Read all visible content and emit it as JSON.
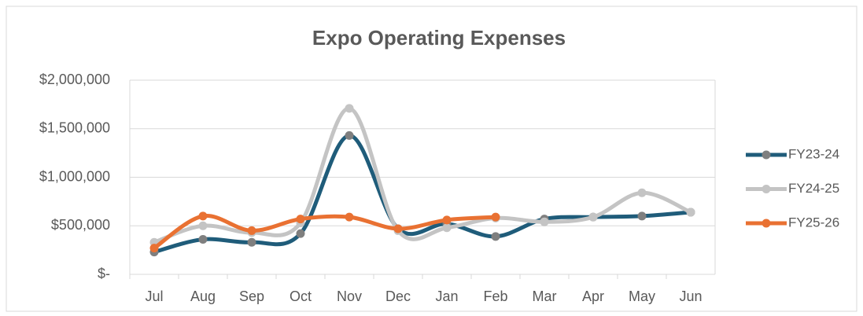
{
  "chart_data": {
    "type": "line",
    "title": "Expo Operating Expenses",
    "categories": [
      "Jul",
      "Aug",
      "Sep",
      "Oct",
      "Nov",
      "Dec",
      "Jan",
      "Feb",
      "Mar",
      "Apr",
      "May",
      "Jun"
    ],
    "series": [
      {
        "name": "FY23-24",
        "color": "#1f5c7a",
        "values": [
          230000,
          360000,
          330000,
          420000,
          1430000,
          470000,
          520000,
          390000,
          570000,
          590000,
          600000,
          640000
        ]
      },
      {
        "name": "FY24-25",
        "color": "#c4c4c4",
        "values": [
          330000,
          500000,
          430000,
          530000,
          1710000,
          450000,
          480000,
          580000,
          540000,
          590000,
          840000,
          640000
        ]
      },
      {
        "name": "FY25-26",
        "color": "#e97132",
        "values": [
          270000,
          600000,
          450000,
          570000,
          590000,
          470000,
          560000,
          590000,
          null,
          null,
          null,
          null
        ]
      }
    ],
    "ylim": [
      0,
      2000000
    ],
    "yticks": [
      {
        "value": 0,
        "label": "$-"
      },
      {
        "value": 500000,
        "label": "$500,000"
      },
      {
        "value": 1000000,
        "label": "$1,000,000"
      },
      {
        "value": 1500000,
        "label": "$1,500,000"
      },
      {
        "value": 2000000,
        "label": "$2,000,000"
      }
    ],
    "grid": true,
    "legend": "right"
  }
}
